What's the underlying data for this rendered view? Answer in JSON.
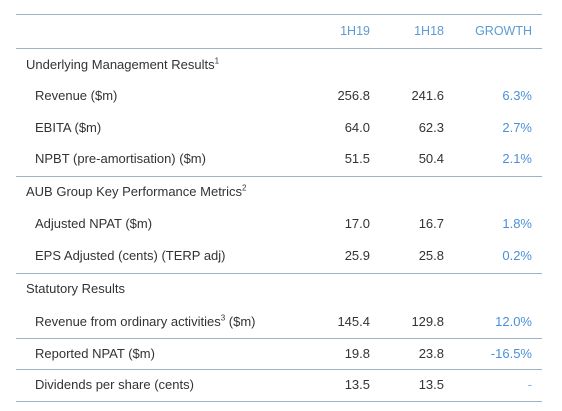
{
  "header": {
    "col1": "1H19",
    "col2": "1H18",
    "col3": "GROWTH"
  },
  "sections": [
    {
      "title": "Underlying Management Results",
      "title_sup": "1",
      "rows": [
        {
          "label": "Revenue ($m)",
          "v1": "256.8",
          "v2": "241.6",
          "growth": "6.3%"
        },
        {
          "label": "EBITA ($m)",
          "v1": "64.0",
          "v2": "62.3",
          "growth": "2.7%"
        },
        {
          "label": "NPBT (pre-amortisation) ($m)",
          "v1": "51.5",
          "v2": "50.4",
          "growth": "2.1%"
        }
      ]
    },
    {
      "title": "AUB Group Key Performance Metrics",
      "title_sup": "2",
      "rows": [
        {
          "label": "Adjusted NPAT ($m)",
          "v1": "17.0",
          "v2": "16.7",
          "growth": "1.8%"
        },
        {
          "label": "EPS Adjusted (cents) (TERP adj)",
          "v1": "25.9",
          "v2": "25.8",
          "growth": "0.2%"
        }
      ]
    },
    {
      "title": "Statutory Results",
      "rows": [
        {
          "label_pre": "Revenue from ordinary activities",
          "label_sup": "3",
          "label_post": " ($m)",
          "v1": "145.4",
          "v2": "129.8",
          "growth": "12.0%"
        },
        {
          "label": "Reported NPAT ($m)",
          "v1": "19.8",
          "v2": "23.8",
          "growth": "-16.5%"
        },
        {
          "label": "Dividends per share (cents)",
          "v1": "13.5",
          "v2": "13.5",
          "growth": "-"
        }
      ]
    }
  ],
  "colors": {
    "header_text": "#5b9bd5",
    "growth_text": "#4a90d9",
    "rule": "#9fb3c8"
  }
}
